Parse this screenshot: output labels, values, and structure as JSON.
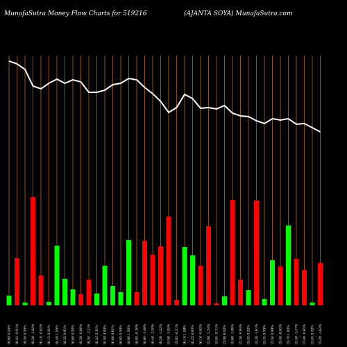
{
  "chart_data": {
    "type": "bar",
    "title": "MunafaSutra  Money Flow  Charts for 519216",
    "subtitle": "(AJANTA SOYA) MunafaSutra.com",
    "categories": [
      "16.60 0.24%",
      "16.45 -0.91%",
      "16.50 0.30%",
      "16.20 -1.82%",
      "16.10 -0.62%",
      "16.15 0.31%",
      "16.40 1.55%",
      "16.55 0.91%",
      "16.60 0.30%",
      "16.50 -0.60%",
      "16.30 -1.21%",
      "16.35 0.31%",
      "16.50 0.92%",
      "16.60 0.61%",
      "16.65 0.30%",
      "16.90 1.50%",
      "16.85 -0.30%",
      "16.60 -1.48%",
      "16.40 -1.20%",
      "16.20 -1.22%",
      "15.90 -1.85%",
      "15.85 -0.31%",
      "16.10 1.58%",
      "16.25 0.93%",
      "16.10 -0.92%",
      "15.90 -1.24%",
      "15.85 -0.31%",
      "15.90 0.32%",
      "15.60 -1.89%",
      "15.50 -0.64%",
      "15.55 0.32%",
      "15.30 -1.61%",
      "15.35 0.33%",
      "15.50 0.98%",
      "15.40 -0.65%",
      "15.70 1.95%",
      "15.50 -1.27%",
      "15.40 -0.65%",
      "15.45 0.32%",
      "15.20 -1.62%"
    ],
    "values": [
      14,
      68,
      4,
      156,
      43,
      5,
      86,
      38,
      23,
      16,
      37,
      17,
      57,
      28,
      19,
      94,
      19,
      93,
      73,
      85,
      128,
      8,
      84,
      72,
      57,
      114,
      3,
      13,
      152,
      37,
      22,
      151,
      9,
      65,
      56,
      115,
      67,
      51,
      4,
      61
    ],
    "colors": [
      "#00ff00",
      "#ff0000",
      "#00ff00",
      "#ff0000",
      "#ff0000",
      "#00ff00",
      "#00ff00",
      "#00ff00",
      "#00ff00",
      "#ff0000",
      "#ff0000",
      "#00ff00",
      "#00ff00",
      "#00ff00",
      "#00ff00",
      "#00ff00",
      "#ff0000",
      "#ff0000",
      "#ff0000",
      "#ff0000",
      "#ff0000",
      "#ff0000",
      "#00ff00",
      "#00ff00",
      "#ff0000",
      "#ff0000",
      "#ff0000",
      "#00ff00",
      "#ff0000",
      "#ff0000",
      "#00ff00",
      "#ff0000",
      "#00ff00",
      "#00ff00",
      "#ff0000",
      "#00ff00",
      "#ff0000",
      "#ff0000",
      "#00ff00",
      "#ff0000"
    ],
    "line": [
      352,
      348,
      340,
      316,
      312,
      320,
      326,
      320,
      325,
      322,
      307,
      307,
      310,
      318,
      320,
      327,
      325,
      314,
      305,
      294,
      278,
      285,
      304,
      298,
      284,
      285,
      283,
      288,
      277,
      273,
      272,
      266,
      262,
      269,
      267,
      269,
      261,
      262,
      256,
      250
    ],
    "line_color": "#ffffff",
    "grid_color": "#b86a10",
    "ylim": [
      0,
      360
    ]
  }
}
